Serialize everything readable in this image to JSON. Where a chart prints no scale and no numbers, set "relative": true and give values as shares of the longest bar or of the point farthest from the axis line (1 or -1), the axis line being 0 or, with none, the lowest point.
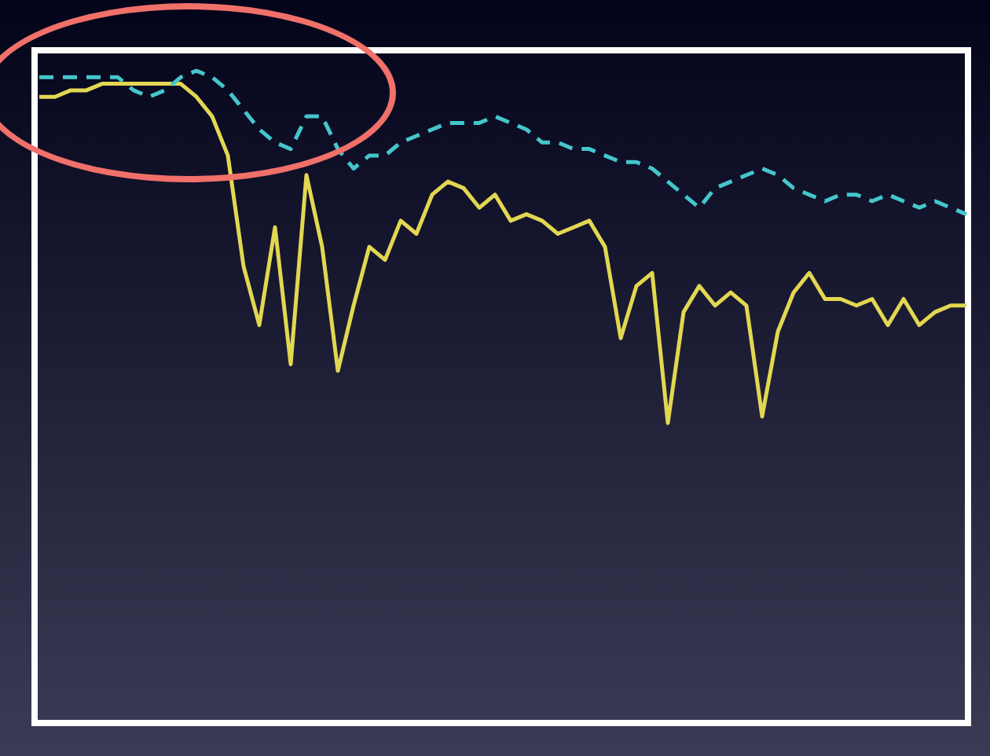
{
  "chart_data": {
    "type": "line",
    "relative": true,
    "categories": [
      null,
      null,
      null,
      null,
      null,
      null,
      null,
      null,
      null,
      null,
      null,
      null,
      null,
      null,
      null,
      null,
      null,
      null,
      null,
      null,
      null,
      null,
      null,
      null,
      null,
      null,
      null,
      null,
      null,
      null,
      null,
      null,
      null,
      null,
      null,
      null,
      null,
      null,
      null,
      null,
      null,
      null,
      null,
      null,
      null,
      null,
      null,
      null,
      null,
      null,
      null,
      null,
      null,
      null,
      null,
      null,
      null,
      null,
      null,
      null
    ],
    "series": [
      {
        "color": "#44c6cc",
        "line_style": "dashed",
        "values": [
          0.99,
          0.99,
          0.99,
          0.99,
          0.99,
          0.99,
          0.97,
          0.96,
          0.97,
          0.99,
          1,
          0.99,
          0.97,
          0.94,
          0.91,
          0.89,
          0.88,
          0.93,
          0.93,
          0.88,
          0.85,
          0.87,
          0.87,
          0.89,
          0.9,
          0.91,
          0.92,
          0.92,
          0.92,
          0.93,
          0.92,
          0.91,
          0.89,
          0.89,
          0.88,
          0.88,
          0.87,
          0.86,
          0.86,
          0.85,
          0.83,
          0.81,
          0.79,
          0.82,
          0.83,
          0.84,
          0.85,
          0.84,
          0.82,
          0.81,
          0.8,
          0.81,
          0.81,
          0.8,
          0.81,
          0.8,
          0.79,
          0.8,
          0.79,
          0.78
        ]
      },
      {
        "color": "#e3d752",
        "line_style": "solid",
        "values": [
          0.96,
          0.96,
          0.97,
          0.97,
          0.98,
          0.98,
          0.98,
          0.98,
          0.98,
          0.98,
          0.96,
          0.93,
          0.87,
          0.7,
          0.61,
          0.76,
          0.55,
          0.84,
          0.73,
          0.54,
          0.64,
          0.73,
          0.71,
          0.77,
          0.75,
          0.81,
          0.83,
          0.82,
          0.79,
          0.81,
          0.77,
          0.78,
          0.77,
          0.75,
          0.76,
          0.77,
          0.73,
          0.59,
          0.67,
          0.69,
          0.46,
          0.63,
          0.67,
          0.64,
          0.66,
          0.64,
          0.47,
          0.6,
          0.66,
          0.69,
          0.65,
          0.65,
          0.64,
          0.65,
          0.61,
          0.65,
          0.61,
          0.63,
          0.64,
          0.64
        ]
      }
    ]
  }
}
